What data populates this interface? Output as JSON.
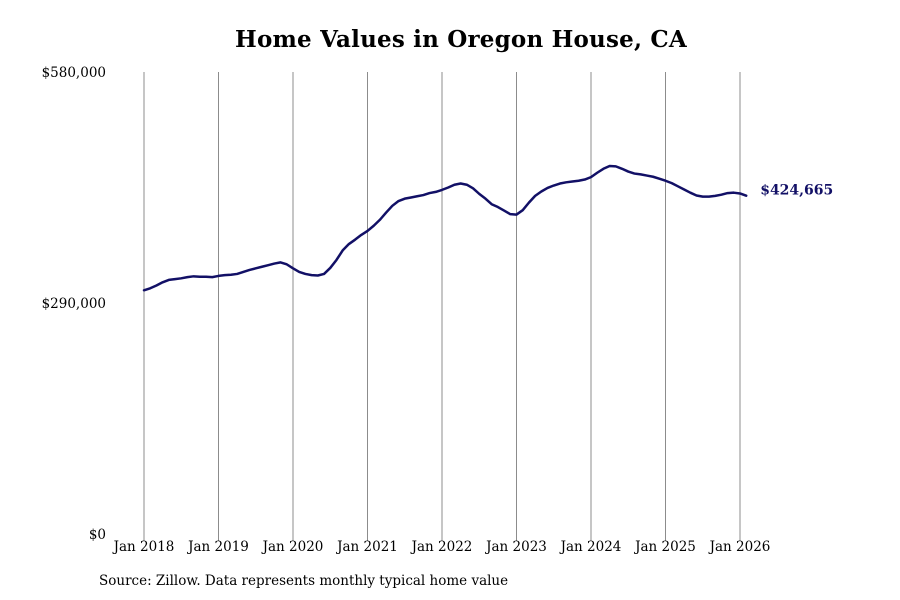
{
  "source_note": "Source: Zillow. Data represents monthly typical home value",
  "colors": {
    "line": "#121066",
    "gridline": "#8c8c8c",
    "end_label": "#121066"
  },
  "chart_data": {
    "type": "line",
    "title": "Home Values in Oregon House, CA",
    "xlabel": "",
    "ylabel": "",
    "x_ticks": [
      "Jan 2018",
      "Jan 2019",
      "Jan 2020",
      "Jan 2021",
      "Jan 2022",
      "Jan 2023",
      "Jan 2024",
      "Jan 2025",
      "Jan 2026"
    ],
    "y_ticks": [
      "$0",
      "$290,000",
      "$580,000"
    ],
    "y_tick_values": [
      0,
      290000,
      580000
    ],
    "ylim": [
      0,
      580000
    ],
    "grid": "vertical lines at each January",
    "end_label": "$424,665",
    "series": [
      {
        "points": [
          [
            "2018-01",
            306000
          ],
          [
            "2018-02",
            308500
          ],
          [
            "2018-03",
            312000
          ],
          [
            "2018-04",
            316000
          ],
          [
            "2018-05",
            319000
          ],
          [
            "2018-06",
            320000
          ],
          [
            "2018-07",
            321000
          ],
          [
            "2018-08",
            322500
          ],
          [
            "2018-09",
            323500
          ],
          [
            "2018-10",
            323000
          ],
          [
            "2018-11",
            323000
          ],
          [
            "2018-12",
            322500
          ],
          [
            "2019-01",
            324000
          ],
          [
            "2019-02",
            325000
          ],
          [
            "2019-03",
            325500
          ],
          [
            "2019-04",
            326500
          ],
          [
            "2019-05",
            329000
          ],
          [
            "2019-06",
            331500
          ],
          [
            "2019-07",
            333500
          ],
          [
            "2019-08",
            335500
          ],
          [
            "2019-09",
            337500
          ],
          [
            "2019-10",
            339500
          ],
          [
            "2019-11",
            341000
          ],
          [
            "2019-12",
            338500
          ],
          [
            "2020-01",
            333500
          ],
          [
            "2020-02",
            329000
          ],
          [
            "2020-03",
            326500
          ],
          [
            "2020-04",
            325000
          ],
          [
            "2020-05",
            324500
          ],
          [
            "2020-06",
            326500
          ],
          [
            "2020-07",
            334000
          ],
          [
            "2020-08",
            344000
          ],
          [
            "2020-09",
            356000
          ],
          [
            "2020-10",
            364000
          ],
          [
            "2020-11",
            369500
          ],
          [
            "2020-12",
            375500
          ],
          [
            "2021-01",
            380500
          ],
          [
            "2021-02",
            387000
          ],
          [
            "2021-03",
            394500
          ],
          [
            "2021-04",
            403500
          ],
          [
            "2021-05",
            412000
          ],
          [
            "2021-06",
            418000
          ],
          [
            "2021-07",
            421000
          ],
          [
            "2021-08",
            422500
          ],
          [
            "2021-09",
            424000
          ],
          [
            "2021-10",
            425500
          ],
          [
            "2021-11",
            428000
          ],
          [
            "2021-12",
            429500
          ],
          [
            "2022-01",
            432000
          ],
          [
            "2022-02",
            435000
          ],
          [
            "2022-03",
            438500
          ],
          [
            "2022-04",
            440000
          ],
          [
            "2022-05",
            438500
          ],
          [
            "2022-06",
            434000
          ],
          [
            "2022-07",
            427000
          ],
          [
            "2022-08",
            421000
          ],
          [
            "2022-09",
            414000
          ],
          [
            "2022-10",
            410500
          ],
          [
            "2022-11",
            406000
          ],
          [
            "2022-12",
            401500
          ],
          [
            "2023-01",
            401000
          ],
          [
            "2023-02",
            406500
          ],
          [
            "2023-03",
            416000
          ],
          [
            "2023-04",
            424500
          ],
          [
            "2023-05",
            430000
          ],
          [
            "2023-06",
            434500
          ],
          [
            "2023-07",
            437500
          ],
          [
            "2023-08",
            440000
          ],
          [
            "2023-09",
            441500
          ],
          [
            "2023-10",
            442500
          ],
          [
            "2023-11",
            443500
          ],
          [
            "2023-12",
            445000
          ],
          [
            "2024-01",
            448000
          ],
          [
            "2024-02",
            453500
          ],
          [
            "2024-03",
            458500
          ],
          [
            "2024-04",
            462000
          ],
          [
            "2024-05",
            461500
          ],
          [
            "2024-06",
            458500
          ],
          [
            "2024-07",
            455000
          ],
          [
            "2024-08",
            452500
          ],
          [
            "2024-09",
            451500
          ],
          [
            "2024-10",
            450000
          ],
          [
            "2024-11",
            448500
          ],
          [
            "2024-12",
            446000
          ],
          [
            "2025-01",
            443500
          ],
          [
            "2025-02",
            440500
          ],
          [
            "2025-03",
            436500
          ],
          [
            "2025-04",
            432500
          ],
          [
            "2025-05",
            428500
          ],
          [
            "2025-06",
            425000
          ],
          [
            "2025-07",
            423500
          ],
          [
            "2025-08",
            423500
          ],
          [
            "2025-09",
            424500
          ],
          [
            "2025-10",
            426000
          ],
          [
            "2025-11",
            428000
          ],
          [
            "2025-12",
            428500
          ],
          [
            "2026-01",
            427500
          ],
          [
            "2026-02",
            424665
          ]
        ]
      }
    ]
  }
}
